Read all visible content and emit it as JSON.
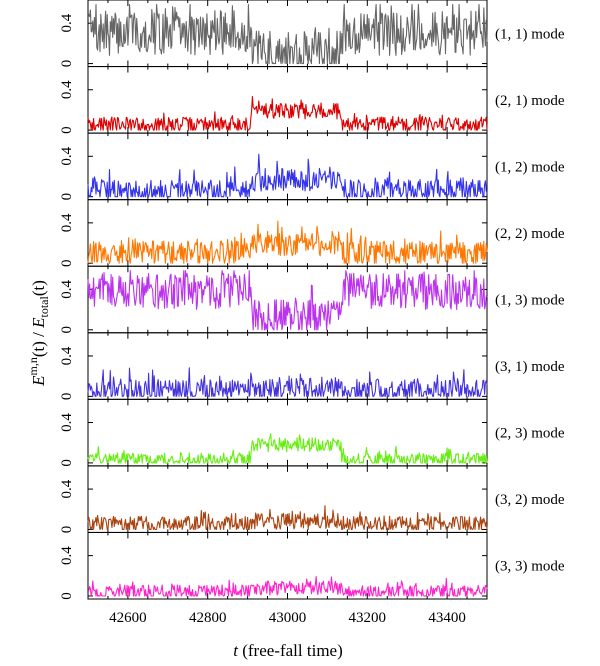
{
  "chart_data": {
    "type": "line",
    "title": "",
    "xlabel_prefix": "t",
    "xlabel_suffix": " (free-fall time)",
    "ylabel": {
      "num_main": "E",
      "num_sup": "m,n",
      "num_mid": "(t) / ",
      "den_main": "E",
      "den_sub": "total",
      "den_end": "(t)"
    },
    "xlim": [
      42500,
      43500
    ],
    "xticks": [
      42600,
      42800,
      43000,
      43200,
      43400
    ],
    "xtick_labels": [
      "42600",
      "42800",
      "43000",
      "43200",
      "43400"
    ],
    "ylim": [
      0,
      0.6
    ],
    "yticks": [
      0,
      0.4
    ],
    "ytick_labels": [
      "0",
      "0.4"
    ],
    "event_interval": [
      42910,
      43135
    ],
    "panels": [
      {
        "name": "(1, 1) mode",
        "color": "#666666",
        "base": 0.3,
        "event": 0.1,
        "noise": 0.22
      },
      {
        "name": "(2, 1) mode",
        "color": "#dd0000",
        "base": 0.05,
        "event": 0.19,
        "noise": 0.08
      },
      {
        "name": "(1, 2) mode",
        "color": "#3333ee",
        "base": 0.05,
        "event": 0.17,
        "noise": 0.12
      },
      {
        "name": "(2, 2) mode",
        "color": "#ff7700",
        "base": 0.1,
        "event": 0.19,
        "noise": 0.12
      },
      {
        "name": "(1, 3) mode",
        "color": "#bb33ee",
        "base": 0.38,
        "event": 0.12,
        "noise": 0.18
      },
      {
        "name": "(3, 1) mode",
        "color": "#4433dd",
        "base": 0.05,
        "event": 0.07,
        "noise": 0.12
      },
      {
        "name": "(2, 3) mode",
        "color": "#66ee11",
        "base": 0.03,
        "event": 0.18,
        "noise": 0.07
      },
      {
        "name": "(3, 2) mode",
        "color": "#aa4411",
        "base": 0.05,
        "event": 0.08,
        "noise": 0.08
      },
      {
        "name": "(3, 3) mode",
        "color": "#ff22cc",
        "base": 0.04,
        "event": 0.08,
        "noise": 0.07
      }
    ]
  }
}
